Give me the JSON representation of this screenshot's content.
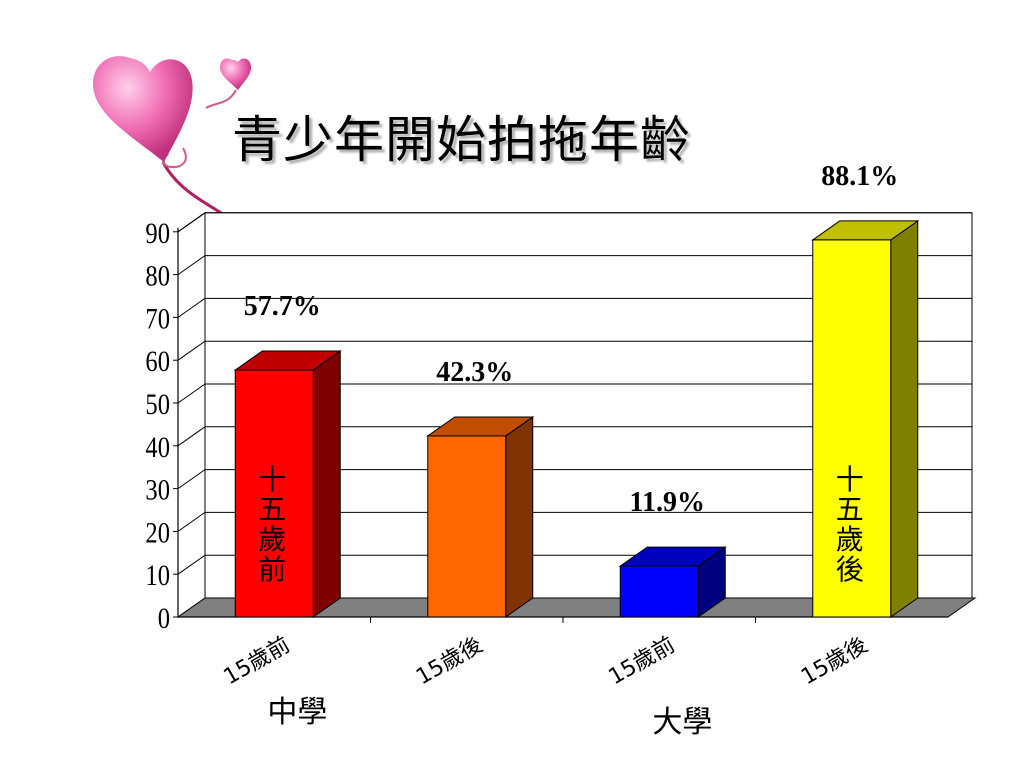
{
  "title": "青少年開始拍拖年齡",
  "colors": {
    "back_wall": "#ffffff",
    "floor": "#808080",
    "grid": "#000000",
    "bars": [
      {
        "front": "#ff0000",
        "side": "#800000",
        "top": "#c00000"
      },
      {
        "front": "#ff6600",
        "side": "#803300",
        "top": "#c04d00"
      },
      {
        "front": "#0000ff",
        "side": "#000080",
        "top": "#0000c0"
      },
      {
        "front": "#ffff00",
        "side": "#808000",
        "top": "#c0c000"
      }
    ]
  },
  "chart_data": {
    "type": "bar",
    "three_d": true,
    "title": "青少年開始拍拖年齡",
    "categories": [
      "15歲前",
      "15歲後",
      "15歲前",
      "15歲後"
    ],
    "group_labels": [
      "中學",
      "大學"
    ],
    "values": [
      57.7,
      42.3,
      11.9,
      88.1
    ],
    "data_labels": [
      "57.7%",
      "42.3%",
      "11.9%",
      "88.1%"
    ],
    "bar_annotations": [
      "十五歲前",
      "",
      "",
      "十五歲後"
    ],
    "yticks": [
      "0",
      "10",
      "20",
      "30",
      "40",
      "50",
      "60",
      "70",
      "80",
      "90"
    ],
    "ylim": [
      0,
      90
    ],
    "grid": true,
    "legend": "none"
  }
}
